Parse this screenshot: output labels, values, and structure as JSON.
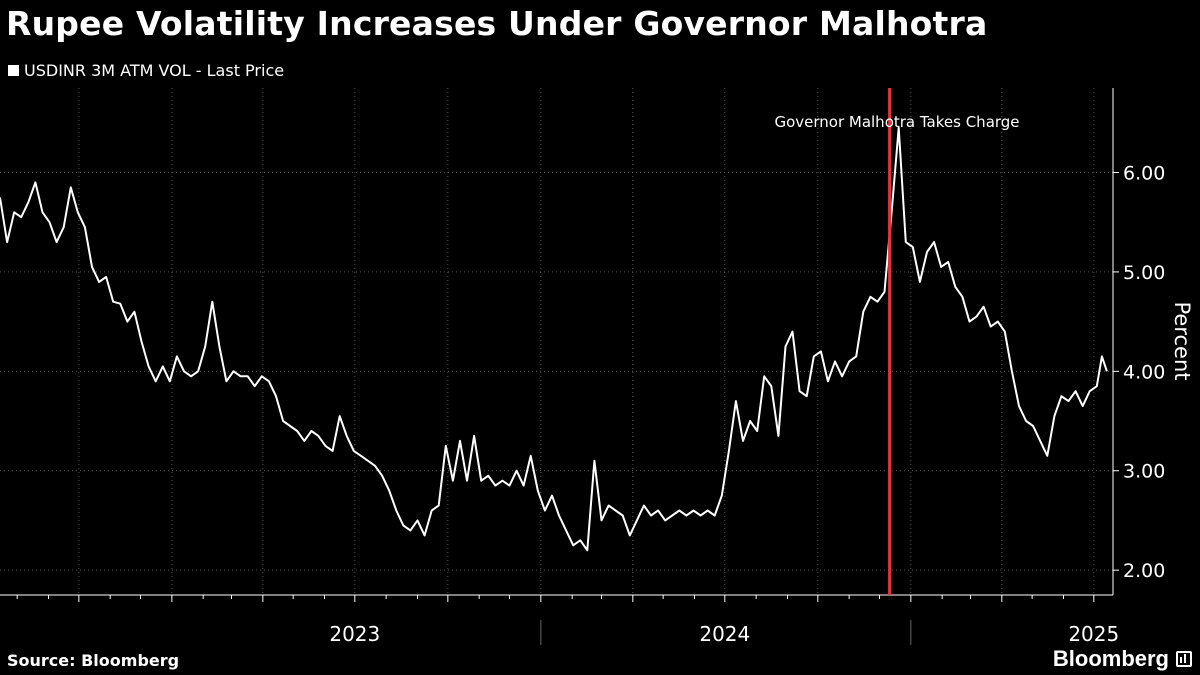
{
  "title": "Rupee Volatility Increases Under Governor Malhotra",
  "legend": {
    "series_name": "USDINR 3M ATM VOL - Last Price"
  },
  "annotation": {
    "text": "Governor Malhotra Takes Charge",
    "date": "2024-12-11"
  },
  "source": "Source: Bloomberg",
  "brand": "Bloomberg",
  "colors": {
    "background": "#000000",
    "line": "#ffffff",
    "marker": "#e3343b",
    "grid": "#555555"
  },
  "chart_data": {
    "type": "line",
    "title": "Rupee Volatility Increases Under Governor Malhotra",
    "ylabel": "Percent",
    "xlabel": "",
    "ylim": [
      1.75,
      6.85
    ],
    "xlim": [
      "2022-07-15",
      "2025-07-20"
    ],
    "y_ticks": [
      2.0,
      3.0,
      4.0,
      5.0,
      6.0
    ],
    "y_tick_labels": [
      "2.00",
      "3.00",
      "4.00",
      "5.00",
      "6.00"
    ],
    "x_year_labels": [
      {
        "label": "2023",
        "date": "2023-07-01"
      },
      {
        "label": "2024",
        "date": "2024-07-01"
      },
      {
        "label": "2025",
        "date": "2025-07-01"
      }
    ],
    "x_year_separators": [
      "2024-01-01",
      "2025-01-01"
    ],
    "grid": true,
    "y_axis_side": "right",
    "series": [
      {
        "name": "USDINR 3M ATM VOL - Last Price",
        "points": [
          [
            "2022-07-15",
            5.75
          ],
          [
            "2022-07-22",
            5.3
          ],
          [
            "2022-07-29",
            5.6
          ],
          [
            "2022-08-05",
            5.55
          ],
          [
            "2022-08-12",
            5.7
          ],
          [
            "2022-08-19",
            5.9
          ],
          [
            "2022-08-26",
            5.6
          ],
          [
            "2022-09-02",
            5.5
          ],
          [
            "2022-09-09",
            5.3
          ],
          [
            "2022-09-16",
            5.45
          ],
          [
            "2022-09-23",
            5.85
          ],
          [
            "2022-09-30",
            5.6
          ],
          [
            "2022-10-07",
            5.45
          ],
          [
            "2022-10-14",
            5.05
          ],
          [
            "2022-10-21",
            4.9
          ],
          [
            "2022-10-28",
            4.95
          ],
          [
            "2022-11-04",
            4.7
          ],
          [
            "2022-11-11",
            4.68
          ],
          [
            "2022-11-18",
            4.5
          ],
          [
            "2022-11-25",
            4.6
          ],
          [
            "2022-12-02",
            4.3
          ],
          [
            "2022-12-09",
            4.05
          ],
          [
            "2022-12-16",
            3.9
          ],
          [
            "2022-12-23",
            4.05
          ],
          [
            "2022-12-30",
            3.9
          ],
          [
            "2023-01-06",
            4.15
          ],
          [
            "2023-01-13",
            4.0
          ],
          [
            "2023-01-20",
            3.95
          ],
          [
            "2023-01-27",
            4.0
          ],
          [
            "2023-02-03",
            4.25
          ],
          [
            "2023-02-10",
            4.7
          ],
          [
            "2023-02-17",
            4.25
          ],
          [
            "2023-02-24",
            3.9
          ],
          [
            "2023-03-03",
            4.0
          ],
          [
            "2023-03-10",
            3.95
          ],
          [
            "2023-03-17",
            3.95
          ],
          [
            "2023-03-24",
            3.85
          ],
          [
            "2023-03-31",
            3.95
          ],
          [
            "2023-04-07",
            3.9
          ],
          [
            "2023-04-14",
            3.75
          ],
          [
            "2023-04-21",
            3.5
          ],
          [
            "2023-04-28",
            3.45
          ],
          [
            "2023-05-05",
            3.4
          ],
          [
            "2023-05-12",
            3.3
          ],
          [
            "2023-05-19",
            3.4
          ],
          [
            "2023-05-26",
            3.35
          ],
          [
            "2023-06-02",
            3.25
          ],
          [
            "2023-06-09",
            3.2
          ],
          [
            "2023-06-16",
            3.55
          ],
          [
            "2023-06-23",
            3.35
          ],
          [
            "2023-06-30",
            3.2
          ],
          [
            "2023-07-07",
            3.15
          ],
          [
            "2023-07-14",
            3.1
          ],
          [
            "2023-07-21",
            3.05
          ],
          [
            "2023-07-28",
            2.95
          ],
          [
            "2023-08-04",
            2.8
          ],
          [
            "2023-08-11",
            2.6
          ],
          [
            "2023-08-18",
            2.45
          ],
          [
            "2023-08-25",
            2.4
          ],
          [
            "2023-09-01",
            2.5
          ],
          [
            "2023-09-08",
            2.35
          ],
          [
            "2023-09-15",
            2.6
          ],
          [
            "2023-09-22",
            2.65
          ],
          [
            "2023-09-29",
            3.25
          ],
          [
            "2023-10-06",
            2.9
          ],
          [
            "2023-10-13",
            3.3
          ],
          [
            "2023-10-20",
            2.9
          ],
          [
            "2023-10-27",
            3.35
          ],
          [
            "2023-11-03",
            2.9
          ],
          [
            "2023-11-10",
            2.95
          ],
          [
            "2023-11-17",
            2.85
          ],
          [
            "2023-11-24",
            2.9
          ],
          [
            "2023-12-01",
            2.85
          ],
          [
            "2023-12-08",
            3.0
          ],
          [
            "2023-12-15",
            2.85
          ],
          [
            "2023-12-22",
            3.15
          ],
          [
            "2023-12-29",
            2.8
          ],
          [
            "2024-01-05",
            2.6
          ],
          [
            "2024-01-12",
            2.75
          ],
          [
            "2024-01-19",
            2.55
          ],
          [
            "2024-01-26",
            2.4
          ],
          [
            "2024-02-02",
            2.25
          ],
          [
            "2024-02-09",
            2.3
          ],
          [
            "2024-02-16",
            2.2
          ],
          [
            "2024-02-23",
            3.1
          ],
          [
            "2024-03-01",
            2.5
          ],
          [
            "2024-03-08",
            2.65
          ],
          [
            "2024-03-15",
            2.6
          ],
          [
            "2024-03-22",
            2.55
          ],
          [
            "2024-03-29",
            2.35
          ],
          [
            "2024-04-05",
            2.5
          ],
          [
            "2024-04-12",
            2.65
          ],
          [
            "2024-04-19",
            2.55
          ],
          [
            "2024-04-26",
            2.6
          ],
          [
            "2024-05-03",
            2.5
          ],
          [
            "2024-05-10",
            2.55
          ],
          [
            "2024-05-17",
            2.6
          ],
          [
            "2024-05-24",
            2.55
          ],
          [
            "2024-05-31",
            2.6
          ],
          [
            "2024-06-07",
            2.55
          ],
          [
            "2024-06-14",
            2.6
          ],
          [
            "2024-06-21",
            2.55
          ],
          [
            "2024-06-28",
            2.75
          ],
          [
            "2024-07-05",
            3.2
          ],
          [
            "2024-07-12",
            3.7
          ],
          [
            "2024-07-19",
            3.3
          ],
          [
            "2024-07-26",
            3.5
          ],
          [
            "2024-08-02",
            3.4
          ],
          [
            "2024-08-09",
            3.95
          ],
          [
            "2024-08-16",
            3.85
          ],
          [
            "2024-08-23",
            3.35
          ],
          [
            "2024-08-30",
            4.25
          ],
          [
            "2024-09-06",
            4.4
          ],
          [
            "2024-09-13",
            3.8
          ],
          [
            "2024-09-20",
            3.75
          ],
          [
            "2024-09-27",
            4.15
          ],
          [
            "2024-10-04",
            4.2
          ],
          [
            "2024-10-11",
            3.9
          ],
          [
            "2024-10-18",
            4.1
          ],
          [
            "2024-10-25",
            3.95
          ],
          [
            "2024-11-01",
            4.1
          ],
          [
            "2024-11-08",
            4.15
          ],
          [
            "2024-11-15",
            4.6
          ],
          [
            "2024-11-22",
            4.75
          ],
          [
            "2024-11-29",
            4.7
          ],
          [
            "2024-12-06",
            4.8
          ],
          [
            "2024-12-13",
            5.6
          ],
          [
            "2024-12-20",
            6.45
          ],
          [
            "2024-12-27",
            5.3
          ],
          [
            "2025-01-03",
            5.25
          ],
          [
            "2025-01-10",
            4.9
          ],
          [
            "2025-01-17",
            5.2
          ],
          [
            "2025-01-24",
            5.3
          ],
          [
            "2025-01-31",
            5.05
          ],
          [
            "2025-02-07",
            5.1
          ],
          [
            "2025-02-14",
            4.85
          ],
          [
            "2025-02-21",
            4.75
          ],
          [
            "2025-02-28",
            4.5
          ],
          [
            "2025-03-07",
            4.55
          ],
          [
            "2025-03-14",
            4.65
          ],
          [
            "2025-03-21",
            4.45
          ],
          [
            "2025-03-28",
            4.5
          ],
          [
            "2025-04-04",
            4.4
          ],
          [
            "2025-04-11",
            4.0
          ],
          [
            "2025-04-18",
            3.65
          ],
          [
            "2025-04-25",
            3.5
          ],
          [
            "2025-05-02",
            3.45
          ],
          [
            "2025-05-09",
            3.3
          ],
          [
            "2025-05-16",
            3.15
          ],
          [
            "2025-05-23",
            3.55
          ],
          [
            "2025-05-30",
            3.75
          ],
          [
            "2025-06-06",
            3.7
          ],
          [
            "2025-06-13",
            3.8
          ],
          [
            "2025-06-20",
            3.65
          ],
          [
            "2025-06-27",
            3.8
          ],
          [
            "2025-07-04",
            3.85
          ],
          [
            "2025-07-09",
            4.15
          ],
          [
            "2025-07-14",
            4.0
          ]
        ]
      }
    ]
  }
}
